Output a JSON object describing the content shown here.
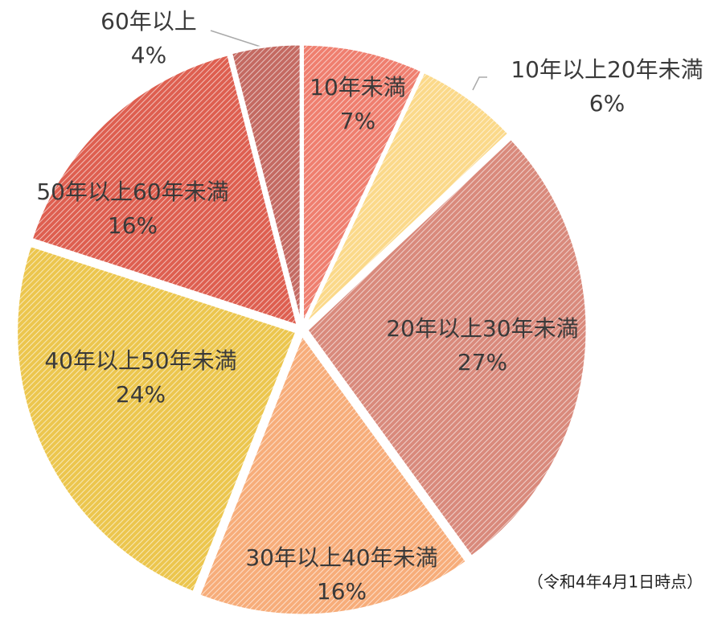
{
  "chart_data": {
    "type": "pie",
    "categories": [
      "10年未満",
      "10年以上20年未満",
      "20年以上30年未満",
      "30年以上40年未満",
      "40年以上50年未満",
      "50年以上60年未満",
      "60年以上"
    ],
    "values": [
      7,
      6,
      27,
      16,
      24,
      16,
      4
    ],
    "value_labels": [
      "7%",
      "6%",
      "27%",
      "16%",
      "24%",
      "16%",
      "4%"
    ],
    "colors": [
      "#ef7f6f",
      "#fbd98a",
      "#d98a7c",
      "#f7ad7a",
      "#ecc64e",
      "#de5f50",
      "#c46a62"
    ],
    "annotation": "（令和4年4月1日時点）"
  }
}
